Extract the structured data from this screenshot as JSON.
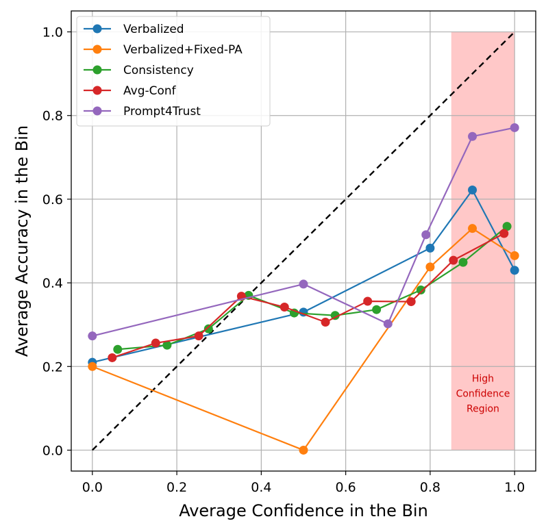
{
  "chart_data": {
    "type": "line",
    "title": "",
    "xlabel": "Average Confidence in the Bin",
    "ylabel": "Average Accuracy in the Bin",
    "xlim": [
      -0.05,
      1.05
    ],
    "ylim": [
      -0.05,
      1.05
    ],
    "xticks": [
      0.0,
      0.2,
      0.4,
      0.6,
      0.8,
      1.0
    ],
    "yticks": [
      0.0,
      0.2,
      0.4,
      0.6,
      0.8,
      1.0
    ],
    "xtick_labels": [
      "0.0",
      "0.2",
      "0.4",
      "0.6",
      "0.8",
      "1.0"
    ],
    "ytick_labels": [
      "0.0",
      "0.2",
      "0.4",
      "0.6",
      "0.8",
      "1.0"
    ],
    "grid": true,
    "legend_position": "top-left",
    "diagonal": {
      "x": [
        0,
        1
      ],
      "y": [
        0,
        1
      ],
      "style": "dashed",
      "color": "#000000"
    },
    "shaded_region": {
      "x_range": [
        0.85,
        1.0
      ],
      "y_range": [
        0,
        1.0
      ],
      "color": "#ffc8c8"
    },
    "annotation": {
      "lines": [
        "High",
        "Confidence",
        "Region"
      ],
      "x": 0.925,
      "y": 0.1,
      "color": "#cc0000"
    },
    "series": [
      {
        "name": "Verbalized",
        "color": "#1f77b4",
        "x": [
          0.0,
          0.5,
          0.8,
          0.9,
          1.0
        ],
        "y": [
          0.21,
          0.33,
          0.483,
          0.622,
          0.43
        ]
      },
      {
        "name": "Verbalized+Fixed-PA",
        "color": "#ff7f0e",
        "x": [
          0.0,
          0.5,
          0.8,
          0.9,
          1.0
        ],
        "y": [
          0.2,
          0.0,
          0.438,
          0.53,
          0.465
        ]
      },
      {
        "name": "Consistency",
        "color": "#2ca02c",
        "x": [
          0.06,
          0.177,
          0.275,
          0.37,
          0.478,
          0.575,
          0.673,
          0.778,
          0.878,
          0.982
        ],
        "y": [
          0.241,
          0.251,
          0.29,
          0.37,
          0.328,
          0.322,
          0.336,
          0.383,
          0.449,
          0.535
        ]
      },
      {
        "name": "Avg-Conf",
        "color": "#d62728",
        "x": [
          0.047,
          0.15,
          0.252,
          0.353,
          0.455,
          0.552,
          0.652,
          0.755,
          0.855,
          0.975
        ],
        "y": [
          0.221,
          0.256,
          0.273,
          0.368,
          0.342,
          0.306,
          0.356,
          0.355,
          0.454,
          0.518
        ]
      },
      {
        "name": "Prompt4Trust",
        "color": "#9467bd",
        "x": [
          0.0,
          0.5,
          0.7,
          0.79,
          0.9,
          1.0
        ],
        "y": [
          0.273,
          0.397,
          0.302,
          0.515,
          0.75,
          0.771
        ]
      }
    ]
  }
}
